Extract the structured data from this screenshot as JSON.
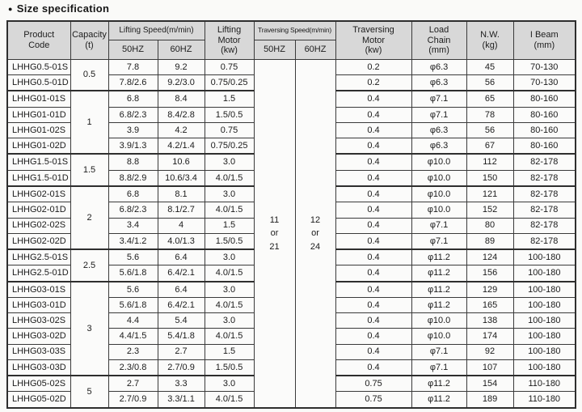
{
  "title": {
    "bullet": "●",
    "text": "Size specification"
  },
  "colors": {
    "header_bg": "#d8d8d8",
    "border": "#2e2e2e",
    "page_bg": "#fafaf8",
    "text": "#1b1b1b"
  },
  "table": {
    "header": {
      "product_code": "Product\nCode",
      "capacity": "Capacity\n(t)",
      "lifting_speed": "Lifting Speed(m/min)",
      "lifting_motor": "Lifting\nMotor\n(kw)",
      "traversing_speed": "Traversing Speed(m/min)",
      "traversing_motor": "Traversing\nMotor\n(kw)",
      "load_chain": "Load\nChain\n(mm)",
      "nw": "N.W.\n(kg)",
      "ibeam": "I Beam\n(mm)",
      "hz50": "50HZ",
      "hz60": "60HZ"
    },
    "traversing_speed_values": {
      "hz50": "11\nor\n21",
      "hz60": "12\nor\n24"
    },
    "capacity_groups": [
      {
        "capacity": "0.5",
        "start": 0,
        "span": 2
      },
      {
        "capacity": "1",
        "start": 2,
        "span": 4
      },
      {
        "capacity": "1.5",
        "start": 6,
        "span": 2
      },
      {
        "capacity": "2",
        "start": 8,
        "span": 4
      },
      {
        "capacity": "2.5",
        "start": 12,
        "span": 2
      },
      {
        "capacity": "3",
        "start": 14,
        "span": 6
      },
      {
        "capacity": "5",
        "start": 20,
        "span": 2
      }
    ],
    "rows": [
      {
        "code": "LHHG0.5-01S",
        "lift50": "7.8",
        "lift60": "9.2",
        "lift_motor": "0.75",
        "trav_motor": "0.2",
        "load_chain": "φ6.3",
        "nw": "45",
        "ibeam": "70-130"
      },
      {
        "code": "LHHG0.5-01D",
        "lift50": "7.8/2.6",
        "lift60": "9.2/3.0",
        "lift_motor": "0.75/0.25",
        "trav_motor": "0.2",
        "load_chain": "φ6.3",
        "nw": "56",
        "ibeam": "70-130"
      },
      {
        "code": "LHHG01-01S",
        "lift50": "6.8",
        "lift60": "8.4",
        "lift_motor": "1.5",
        "trav_motor": "0.4",
        "load_chain": "φ7.1",
        "nw": "65",
        "ibeam": "80-160"
      },
      {
        "code": "LHHG01-01D",
        "lift50": "6.8/2.3",
        "lift60": "8.4/2.8",
        "lift_motor": "1.5/0.5",
        "trav_motor": "0.4",
        "load_chain": "φ7.1",
        "nw": "78",
        "ibeam": "80-160"
      },
      {
        "code": "LHHG01-02S",
        "lift50": "3.9",
        "lift60": "4.2",
        "lift_motor": "0.75",
        "trav_motor": "0.4",
        "load_chain": "φ6.3",
        "nw": "56",
        "ibeam": "80-160"
      },
      {
        "code": "LHHG01-02D",
        "lift50": "3.9/1.3",
        "lift60": "4.2/1.4",
        "lift_motor": "0.75/0.25",
        "trav_motor": "0.4",
        "load_chain": "φ6.3",
        "nw": "67",
        "ibeam": "80-160"
      },
      {
        "code": "LHHG1.5-01S",
        "lift50": "8.8",
        "lift60": "10.6",
        "lift_motor": "3.0",
        "trav_motor": "0.4",
        "load_chain": "φ10.0",
        "nw": "112",
        "ibeam": "82-178"
      },
      {
        "code": "LHHG1.5-01D",
        "lift50": "8.8/2.9",
        "lift60": "10.6/3.4",
        "lift_motor": "4.0/1.5",
        "trav_motor": "0.4",
        "load_chain": "φ10.0",
        "nw": "150",
        "ibeam": "82-178"
      },
      {
        "code": "LHHG02-01S",
        "lift50": "6.8",
        "lift60": "8.1",
        "lift_motor": "3.0",
        "trav_motor": "0.4",
        "load_chain": "φ10.0",
        "nw": "121",
        "ibeam": "82-178"
      },
      {
        "code": "LHHG02-01D",
        "lift50": "6.8/2.3",
        "lift60": "8.1/2.7",
        "lift_motor": "4.0/1.5",
        "trav_motor": "0.4",
        "load_chain": "φ10.0",
        "nw": "152",
        "ibeam": "82-178"
      },
      {
        "code": "LHHG02-02S",
        "lift50": "3.4",
        "lift60": "4",
        "lift_motor": "1.5",
        "trav_motor": "0.4",
        "load_chain": "φ7.1",
        "nw": "80",
        "ibeam": "82-178"
      },
      {
        "code": "LHHG02-02D",
        "lift50": "3.4/1.2",
        "lift60": "4.0/1.3",
        "lift_motor": "1.5/0.5",
        "trav_motor": "0.4",
        "load_chain": "φ7.1",
        "nw": "89",
        "ibeam": "82-178"
      },
      {
        "code": "LHHG2.5-01S",
        "lift50": "5.6",
        "lift60": "6.4",
        "lift_motor": "3.0",
        "trav_motor": "0.4",
        "load_chain": "φ11.2",
        "nw": "124",
        "ibeam": "100-180"
      },
      {
        "code": "LHHG2.5-01D",
        "lift50": "5.6/1.8",
        "lift60": "6.4/2.1",
        "lift_motor": "4.0/1.5",
        "trav_motor": "0.4",
        "load_chain": "φ11.2",
        "nw": "156",
        "ibeam": "100-180"
      },
      {
        "code": "LHHG03-01S",
        "lift50": "5.6",
        "lift60": "6.4",
        "lift_motor": "3.0",
        "trav_motor": "0.4",
        "load_chain": "φ11.2",
        "nw": "129",
        "ibeam": "100-180"
      },
      {
        "code": "LHHG03-01D",
        "lift50": "5.6/1.8",
        "lift60": "6.4/2.1",
        "lift_motor": "4.0/1.5",
        "trav_motor": "0.4",
        "load_chain": "φ11.2",
        "nw": "165",
        "ibeam": "100-180"
      },
      {
        "code": "LHHG03-02S",
        "lift50": "4.4",
        "lift60": "5.4",
        "lift_motor": "3.0",
        "trav_motor": "0.4",
        "load_chain": "φ10.0",
        "nw": "138",
        "ibeam": "100-180"
      },
      {
        "code": "LHHG03-02D",
        "lift50": "4.4/1.5",
        "lift60": "5.4/1.8",
        "lift_motor": "4.0/1.5",
        "trav_motor": "0.4",
        "load_chain": "φ10.0",
        "nw": "174",
        "ibeam": "100-180"
      },
      {
        "code": "LHHG03-03S",
        "lift50": "2.3",
        "lift60": "2.7",
        "lift_motor": "1.5",
        "trav_motor": "0.4",
        "load_chain": "φ7.1",
        "nw": "92",
        "ibeam": "100-180"
      },
      {
        "code": "LHHG03-03D",
        "lift50": "2.3/0.8",
        "lift60": "2.7/0.9",
        "lift_motor": "1.5/0.5",
        "trav_motor": "0.4",
        "load_chain": "φ7.1",
        "nw": "107",
        "ibeam": "100-180"
      },
      {
        "code": "LHHG05-02S",
        "lift50": "2.7",
        "lift60": "3.3",
        "lift_motor": "3.0",
        "trav_motor": "0.75",
        "load_chain": "φ11.2",
        "nw": "154",
        "ibeam": "110-180"
      },
      {
        "code": "LHHG05-02D",
        "lift50": "2.7/0.9",
        "lift60": "3.3/1.1",
        "lift_motor": "4.0/1.5",
        "trav_motor": "0.75",
        "load_chain": "φ11.2",
        "nw": "189",
        "ibeam": "110-180"
      }
    ]
  }
}
